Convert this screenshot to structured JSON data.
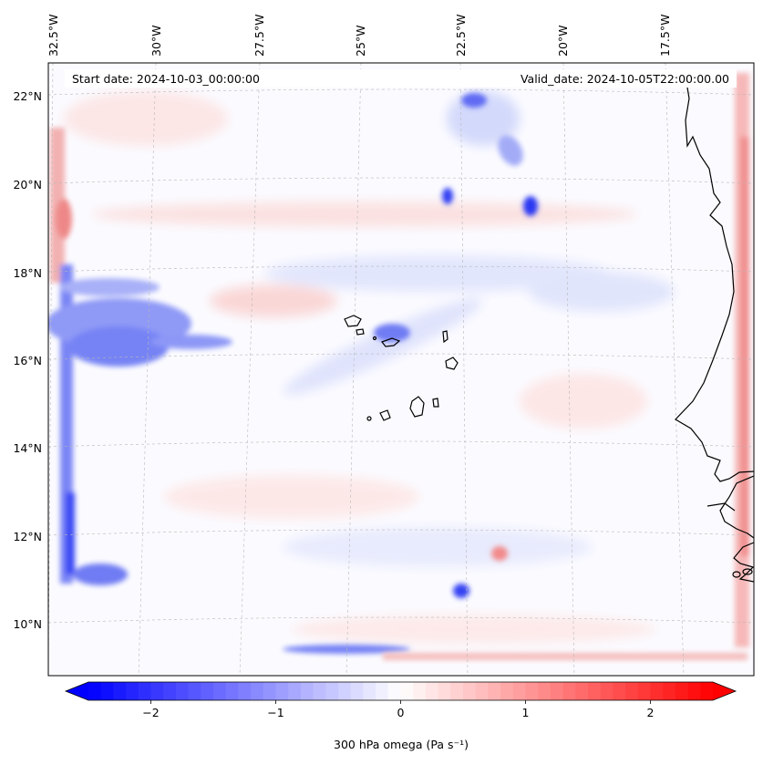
{
  "map": {
    "start_date_label": "Start date: 2024-10-03_00:00:00",
    "valid_date_label": "Valid_date: 2024-10-05T22:00:00.00",
    "longitude_labels": [
      "32.5°W",
      "30°W",
      "27.5°W",
      "25°W",
      "22.5°W",
      "20°W",
      "17.5°W"
    ],
    "latitude_labels": [
      "22°N",
      "20°N",
      "18°N",
      "16°N",
      "14°N",
      "12°N",
      "10°N"
    ],
    "field": "300 hPa omega",
    "colormap": "bwr"
  },
  "colorbar": {
    "label": "300 hPa omega (Pa s⁻¹)",
    "ticks": [
      {
        "value": -2,
        "label": "−2"
      },
      {
        "value": -1,
        "label": "−1"
      },
      {
        "value": 0,
        "label": "0"
      },
      {
        "value": 1,
        "label": "1"
      },
      {
        "value": 2,
        "label": "2"
      }
    ],
    "range": [
      -2.5,
      2.5
    ],
    "levels": 50,
    "extend": "both",
    "low_color": "#0000ff",
    "mid_color": "#ffffff",
    "high_color": "#ff0000"
  },
  "colors": {
    "neg_strong": "#2233ff",
    "neg_mid": "#6e7cf7",
    "neg_light": "#c7cdfb",
    "pos_light": "#f8c9c9",
    "pos_mid": "#f19a9a",
    "coast": "#000000",
    "grid": "#b8b8b8"
  }
}
